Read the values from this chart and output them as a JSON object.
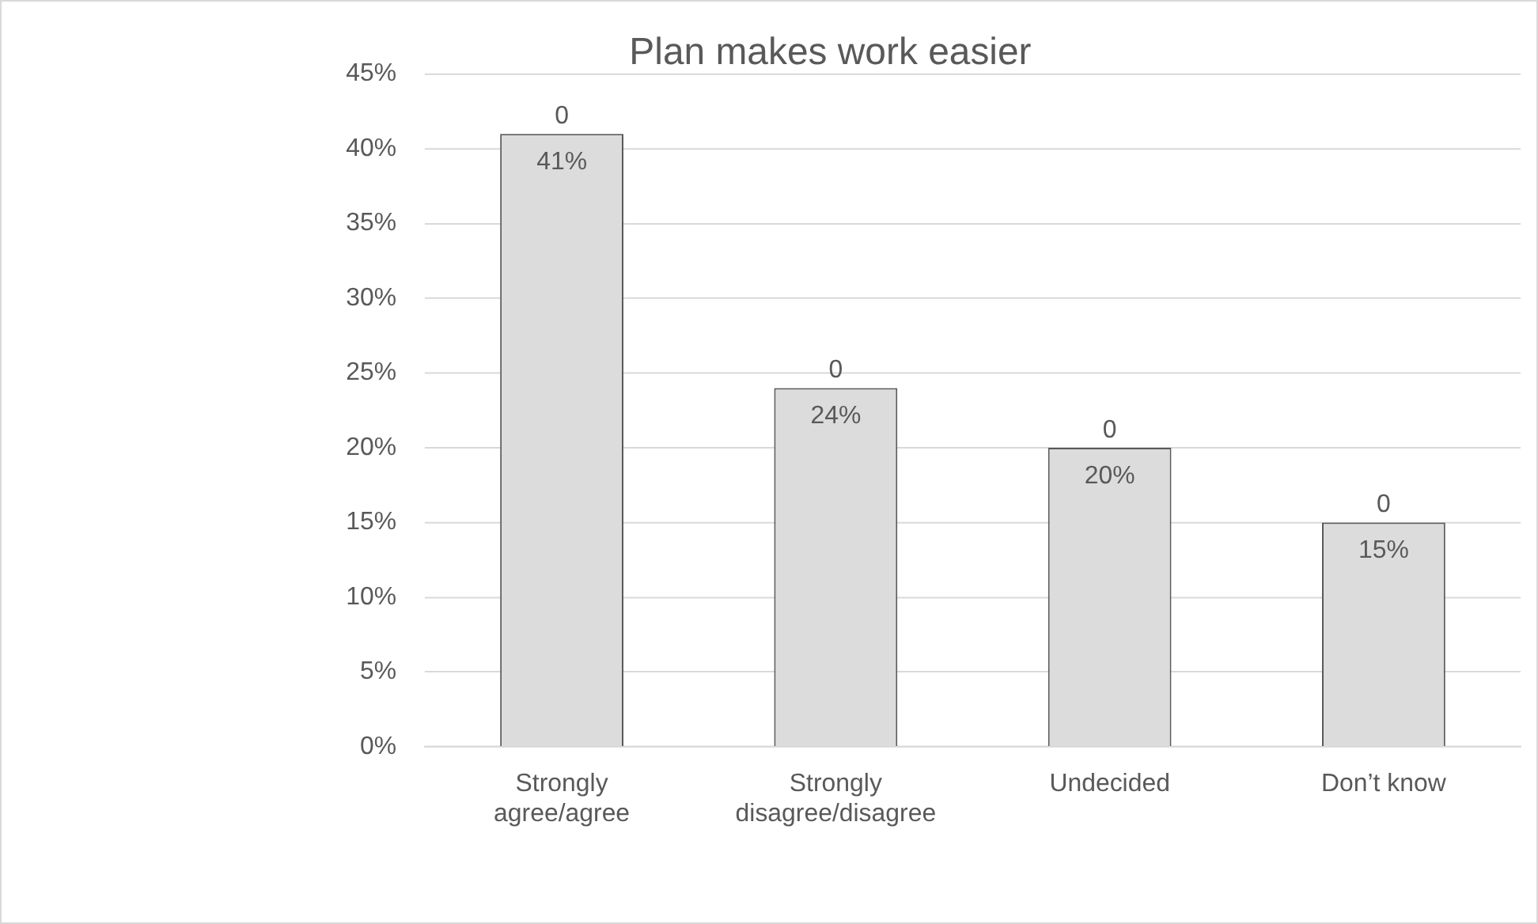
{
  "chart_data": {
    "type": "bar",
    "title": "Plan makes work easier",
    "categories": [
      "Strongly agree/agree",
      "Strongly disagree/disagree",
      "Undecided",
      "Don’t know"
    ],
    "values": [
      41,
      24,
      20,
      15
    ],
    "color": "#dcdcdc",
    "value_labels": [
      "41%",
      "24%",
      "20%",
      "15%"
    ],
    "annotations": [
      {
        "text": "0",
        "x": "Strongly agree/agree",
        "y": 41
      },
      {
        "text": "0",
        "x": "Strongly disagree/disagree",
        "y": 24
      },
      {
        "text": "0",
        "x": "Undecided",
        "y": 20
      },
      {
        "text": "0",
        "x": "Don’t know",
        "y": 15
      }
    ],
    "ylim": [
      0,
      45
    ],
    "yticks": [
      {
        "value": 0,
        "label": "0%"
      },
      {
        "value": 5,
        "label": "5%"
      },
      {
        "value": 10,
        "label": "10%"
      },
      {
        "value": 15,
        "label": "15%"
      },
      {
        "value": 20,
        "label": "20%"
      },
      {
        "value": 25,
        "label": "25%"
      },
      {
        "value": 30,
        "label": "30%"
      },
      {
        "value": 35,
        "label": "35%"
      },
      {
        "value": 40,
        "label": "40%"
      },
      {
        "value": 45,
        "label": "45%"
      }
    ],
    "grid": "y",
    "legend": false
  }
}
